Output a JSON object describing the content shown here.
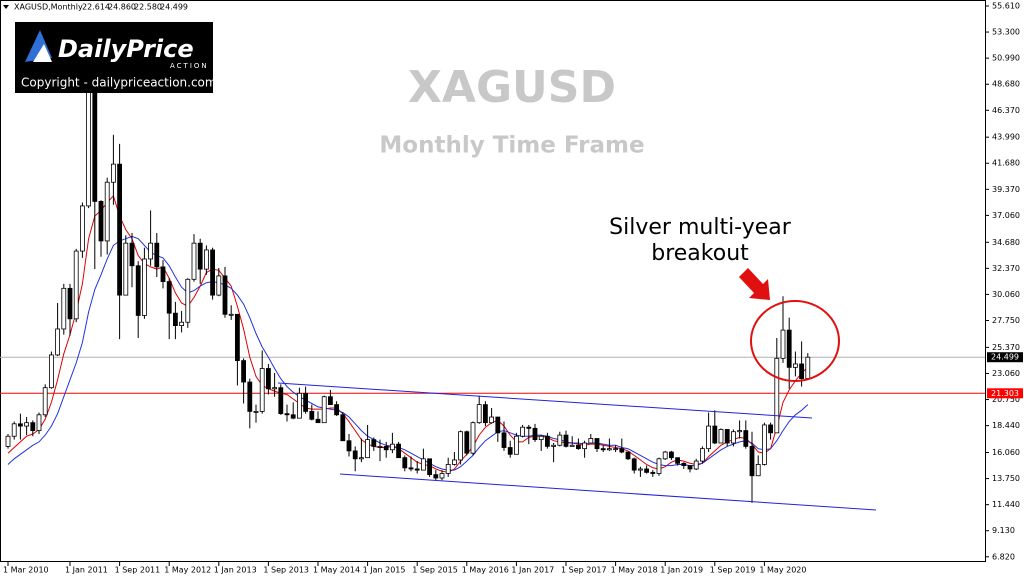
{
  "chart_data": {
    "type": "candlestick",
    "symbol_header": "XAGUSD,Monthly",
    "ohlc_labels": [
      "22.614",
      "24.860",
      "22.580",
      "24.499"
    ],
    "title": "XAGUSD",
    "subtitle": "Monthly Time Frame",
    "annotation": [
      "Silver multi-year",
      "breakout"
    ],
    "logo": {
      "brand": "DailyPrice",
      "tag": "ACTION",
      "copyright": "Copyright - dailypriceaction.com"
    },
    "categories": [
      "1 Mar 2010",
      null,
      null,
      null,
      null,
      null,
      null,
      null,
      null,
      null,
      "1 Jan 2011",
      null,
      null,
      null,
      null,
      null,
      null,
      null,
      "1 Sep 2011",
      null,
      null,
      null,
      null,
      null,
      null,
      null,
      "1 May 2012",
      null,
      null,
      null,
      null,
      null,
      null,
      null,
      "1 Jan 2013",
      null,
      null,
      null,
      null,
      null,
      null,
      null,
      "1 Sep 2013",
      null,
      null,
      null,
      null,
      null,
      null,
      null,
      "1 May 2014",
      null,
      null,
      null,
      null,
      null,
      null,
      null,
      "1 Jan 2015",
      null,
      null,
      null,
      null,
      null,
      null,
      null,
      "1 Sep 2015",
      null,
      null,
      null,
      null,
      null,
      null,
      null,
      "1 May 2016",
      null,
      null,
      null,
      null,
      null,
      null,
      null,
      "1 Jan 2017",
      null,
      null,
      null,
      null,
      null,
      null,
      null,
      "1 Sep 2017",
      null,
      null,
      null,
      null,
      null,
      null,
      null,
      "1 May 2018",
      null,
      null,
      null,
      null,
      null,
      null,
      null,
      "1 Jan 2019",
      null,
      null,
      null,
      null,
      null,
      null,
      null,
      "1 Sep 2019",
      null,
      null,
      null,
      null,
      null,
      null,
      null,
      "1 May 2020",
      null,
      null,
      null,
      null,
      null,
      null,
      null
    ],
    "open": [
      16.6,
      17.5,
      18.6,
      18.4,
      18.7,
      18.0,
      19.4,
      21.8,
      24.7,
      27.0,
      30.6,
      27.9,
      33.9,
      37.9,
      48.6,
      38.3,
      34.8,
      40.0,
      41.6,
      30.0,
      34.6,
      32.6,
      28.2,
      33.2,
      34.6,
      32.5,
      31.2,
      28.4,
      27.3,
      27.6,
      31.4,
      34.6,
      32.3,
      34.0,
      30.0,
      31.7,
      28.3,
      28.3,
      24.2,
      22.3,
      19.7,
      19.7,
      23.5,
      21.7,
      21.8,
      19.5,
      19.4,
      19.1,
      21.3,
      19.7,
      19.0,
      18.7,
      21.0,
      20.3,
      19.4,
      17.1,
      16.2,
      15.5,
      15.6,
      17.2,
      16.6,
      16.6,
      16.3,
      16.8,
      15.6,
      14.7,
      14.6,
      14.5,
      15.5,
      14.1,
      13.8,
      14.2,
      15.0,
      15.4,
      17.9,
      16.0,
      18.7,
      20.3,
      18.7,
      19.2,
      17.8,
      16.5,
      15.9,
      17.5,
      18.3,
      18.2,
      17.2,
      17.5,
      16.6,
      16.7,
      17.6,
      16.6,
      16.7,
      16.4,
      16.9,
      17.3,
      16.4,
      16.3,
      16.4,
      16.4,
      16.1,
      15.5,
      14.5,
      14.6,
      14.3,
      14.2,
      15.5,
      16.1,
      15.6,
      15.1,
      14.9,
      14.6,
      15.3,
      16.4,
      18.4,
      16.9,
      18.1,
      16.9,
      17.9,
      18.0,
      16.6,
      14.0,
      15.0,
      18.5,
      17.8,
      24.4,
      26.9,
      23.6,
      23.9,
      22.614
    ],
    "high": [
      17.7,
      18.8,
      19.5,
      19.2,
      18.9,
      19.6,
      22.1,
      25.0,
      29.3,
      31.0,
      31.0,
      34.1,
      38.2,
      49.8,
      48.6,
      38.4,
      40.4,
      44.2,
      43.4,
      35.3,
      35.5,
      33.0,
      34.2,
      37.5,
      35.5,
      33.1,
      31.5,
      29.4,
      28.6,
      31.5,
      35.4,
      35.0,
      34.4,
      34.2,
      32.4,
      32.5,
      29.1,
      28.3,
      24.4,
      22.6,
      20.3,
      25.1,
      23.9,
      23.1,
      22.1,
      20.3,
      20.5,
      21.8,
      21.9,
      20.3,
      19.7,
      21.1,
      21.6,
      20.6,
      19.6,
      17.7,
      16.6,
      17.3,
      18.5,
      17.4,
      17.2,
      17.0,
      17.8,
      17.0,
      15.8,
      15.7,
      15.3,
      16.4,
      15.5,
      14.5,
      14.5,
      15.6,
      16.1,
      18.0,
      18.0,
      18.8,
      21.1,
      20.6,
      20.0,
      19.2,
      18.8,
      17.1,
      17.8,
      18.5,
      18.5,
      18.6,
      17.6,
      17.8,
      16.9,
      17.9,
      18.0,
      17.5,
      17.3,
      17.1,
      17.7,
      17.3,
      16.7,
      17.3,
      16.7,
      17.3,
      16.1,
      15.6,
      14.8,
      14.9,
      14.5,
      15.6,
      16.2,
      16.2,
      15.6,
      15.2,
      14.9,
      15.5,
      16.6,
      19.6,
      19.8,
      18.2,
      18.1,
      18.1,
      18.9,
      18.9,
      17.9,
      15.8,
      18.7,
      18.7,
      26.2,
      29.9,
      28.0,
      25.0,
      25.9,
      24.86
    ],
    "low": [
      16.4,
      17.2,
      17.2,
      17.6,
      17.5,
      17.7,
      19.2,
      21.7,
      24.6,
      26.5,
      26.4,
      27.6,
      33.3,
      37.7,
      32.3,
      33.4,
      33.6,
      38.0,
      26.1,
      30.0,
      30.7,
      26.2,
      27.9,
      32.6,
      31.6,
      30.6,
      26.1,
      26.1,
      26.7,
      27.1,
      31.2,
      31.0,
      31.8,
      29.6,
      29.9,
      28.0,
      27.8,
      22.0,
      20.4,
      18.2,
      18.7,
      19.5,
      21.2,
      21.0,
      19.4,
      18.8,
      19.0,
      19.1,
      19.5,
      18.9,
      18.7,
      18.7,
      20.3,
      19.3,
      17.1,
      15.7,
      14.4,
      15.2,
      15.6,
      16.2,
      15.3,
      15.6,
      16.0,
      15.6,
      14.4,
      14.4,
      14.2,
      14.5,
      13.9,
      13.6,
      13.6,
      13.9,
      14.9,
      15.0,
      15.8,
      15.8,
      18.6,
      18.4,
      18.6,
      17.0,
      16.2,
      15.6,
      15.9,
      17.4,
      16.8,
      17.0,
      16.2,
      16.4,
      15.2,
      16.6,
      16.5,
      16.6,
      16.3,
      15.6,
      16.9,
      16.1,
      16.1,
      16.2,
      16.1,
      16.0,
      15.4,
      14.2,
      13.9,
      14.2,
      13.9,
      14.0,
      15.4,
      15.4,
      14.9,
      14.6,
      14.3,
      14.5,
      15.1,
      16.1,
      16.8,
      16.9,
      16.6,
      16.6,
      17.3,
      16.4,
      11.6,
      14.0,
      14.9,
      17.2,
      17.8,
      24.0,
      21.7,
      22.8,
      21.9,
      22.58
    ],
    "close": [
      17.5,
      18.6,
      18.4,
      18.7,
      18.0,
      19.4,
      21.8,
      24.7,
      27.0,
      30.6,
      27.9,
      33.9,
      37.9,
      48.6,
      38.3,
      34.8,
      40.0,
      41.6,
      30.0,
      34.6,
      32.6,
      28.2,
      33.2,
      34.6,
      32.5,
      31.2,
      28.4,
      27.3,
      27.6,
      31.4,
      34.6,
      32.3,
      34.0,
      30.0,
      31.7,
      28.3,
      28.3,
      24.2,
      22.3,
      19.7,
      19.7,
      23.5,
      21.7,
      21.8,
      19.5,
      19.4,
      19.1,
      21.3,
      19.7,
      19.0,
      18.7,
      21.0,
      20.3,
      19.4,
      17.1,
      16.2,
      15.5,
      15.6,
      17.2,
      16.6,
      16.6,
      16.3,
      16.8,
      15.6,
      14.7,
      14.6,
      14.5,
      15.5,
      14.1,
      13.8,
      14.2,
      15.0,
      15.4,
      17.9,
      16.0,
      18.7,
      20.3,
      18.7,
      19.2,
      17.8,
      16.5,
      15.9,
      17.5,
      18.3,
      18.2,
      17.2,
      17.5,
      16.6,
      16.7,
      17.6,
      16.6,
      16.7,
      16.4,
      16.9,
      17.3,
      16.4,
      16.3,
      16.4,
      16.4,
      16.1,
      15.5,
      14.5,
      14.6,
      14.3,
      14.2,
      15.5,
      16.1,
      15.6,
      15.1,
      14.9,
      14.6,
      15.3,
      16.4,
      18.4,
      16.9,
      18.1,
      16.9,
      17.9,
      18.0,
      16.6,
      14.0,
      15.0,
      18.5,
      17.8,
      24.4,
      26.9,
      23.6,
      23.9,
      22.6,
      24.499
    ],
    "up_color": "#ffffff",
    "down_color": "#000000",
    "series": [
      {
        "color": "#e00000",
        "values": [
          16.0,
          16.5,
          17.0,
          17.5,
          17.7,
          18.1,
          19.0,
          20.5,
          22.5,
          24.8,
          26.5,
          28.5,
          31.0,
          35.0,
          37.0,
          37.5,
          38.2,
          38.8,
          37.0,
          35.8,
          35.0,
          33.5,
          32.8,
          32.5,
          32.3,
          32.5,
          31.5,
          30.2,
          29.3,
          29.0,
          29.8,
          30.8,
          32.0,
          32.3,
          32.2,
          31.5,
          30.8,
          29.0,
          27.0,
          24.5,
          22.8,
          22.0,
          21.7,
          21.5,
          21.3,
          21.2,
          20.8,
          20.4,
          20.0,
          19.9,
          19.9,
          19.9,
          20.0,
          20.0,
          19.5,
          18.8,
          18.0,
          17.2,
          16.8,
          16.6,
          16.5,
          16.5,
          16.6,
          16.4,
          16.0,
          15.6,
          15.2,
          15.0,
          14.9,
          14.6,
          14.4,
          14.3,
          14.6,
          15.3,
          15.9,
          16.6,
          17.6,
          18.3,
          18.7,
          18.9,
          18.4,
          17.6,
          17.0,
          17.0,
          17.4,
          17.5,
          17.5,
          17.4,
          17.1,
          17.0,
          16.9,
          16.9,
          16.8,
          16.7,
          16.8,
          16.8,
          16.7,
          16.6,
          16.5,
          16.4,
          16.2,
          15.8,
          15.4,
          15.0,
          14.7,
          14.6,
          14.8,
          15.2,
          15.4,
          15.3,
          15.1,
          15.0,
          15.1,
          15.7,
          16.2,
          16.7,
          17.0,
          17.2,
          17.4,
          17.3,
          16.8,
          16.1,
          16.0,
          16.4,
          18.3,
          20.5,
          21.6,
          22.4,
          23.1,
          23.6
        ]
      },
      {
        "color": "#2233dd",
        "values": [
          15.0,
          15.5,
          15.9,
          16.3,
          16.7,
          17.0,
          17.6,
          18.4,
          19.5,
          21.0,
          22.5,
          24.0,
          25.8,
          28.5,
          30.5,
          31.8,
          33.2,
          34.4,
          34.8,
          35.0,
          35.2,
          35.0,
          34.4,
          33.8,
          33.5,
          33.3,
          32.6,
          31.6,
          30.7,
          30.2,
          30.4,
          30.8,
          31.1,
          31.2,
          31.1,
          30.9,
          30.6,
          30.0,
          29.2,
          28.0,
          26.6,
          25.4,
          24.5,
          23.5,
          22.6,
          21.9,
          21.4,
          21.0,
          20.7,
          20.4,
          20.1,
          20.0,
          19.9,
          19.8,
          19.6,
          19.2,
          18.6,
          18.0,
          17.5,
          17.2,
          16.9,
          16.7,
          16.6,
          16.5,
          16.3,
          16.0,
          15.7,
          15.4,
          15.1,
          14.8,
          14.6,
          14.5,
          14.5,
          14.8,
          15.3,
          15.8,
          16.5,
          17.1,
          17.5,
          17.9,
          18.0,
          17.8,
          17.6,
          17.5,
          17.5,
          17.6,
          17.6,
          17.5,
          17.3,
          17.2,
          17.0,
          16.9,
          16.9,
          16.8,
          16.9,
          16.9,
          16.8,
          16.7,
          16.7,
          16.5,
          16.4,
          16.1,
          15.8,
          15.5,
          15.2,
          15.0,
          14.9,
          14.9,
          15.0,
          15.0,
          14.9,
          14.9,
          15.1,
          15.5,
          15.9,
          16.3,
          16.6,
          16.8,
          17.0,
          17.1,
          16.9,
          16.4,
          16.3,
          16.4,
          17.1,
          18.0,
          18.8,
          19.4,
          19.8,
          20.3
        ]
      }
    ],
    "price_lines": [
      {
        "value": 24.499,
        "color": "#b0b0b0",
        "label_color": "#000000"
      },
      {
        "value": 21.303,
        "color": "#ff0000",
        "label_color": "#ff0000"
      }
    ],
    "ylim": [
      6.36,
      56.14
    ],
    "yticks": [
      {
        "value": 55.61,
        "label": "55.610"
      },
      {
        "value": 53.3,
        "label": "53.300"
      },
      {
        "value": 50.99,
        "label": "50.990"
      },
      {
        "value": 48.68,
        "label": "48.680"
      },
      {
        "value": 46.37,
        "label": "46.370"
      },
      {
        "value": 43.99,
        "label": "43.990"
      },
      {
        "value": 41.68,
        "label": "41.680"
      },
      {
        "value": 39.37,
        "label": "39.370"
      },
      {
        "value": 37.06,
        "label": "37.060"
      },
      {
        "value": 34.68,
        "label": "34.680"
      },
      {
        "value": 32.37,
        "label": "32.370"
      },
      {
        "value": 30.06,
        "label": "30.060"
      },
      {
        "value": 27.75,
        "label": "27.750"
      },
      {
        "value": 25.37,
        "label": "25.370"
      },
      {
        "value": 23.06,
        "label": "23.060"
      },
      {
        "value": 20.75,
        "label": "20.750"
      },
      {
        "value": 18.44,
        "label": "18.440"
      },
      {
        "value": 16.06,
        "label": "16.060"
      },
      {
        "value": 13.75,
        "label": "13.750"
      },
      {
        "value": 11.44,
        "label": "11.440"
      },
      {
        "value": 9.13,
        "label": "9.130"
      },
      {
        "value": 6.82,
        "label": "6.820"
      }
    ],
    "grid": false
  }
}
